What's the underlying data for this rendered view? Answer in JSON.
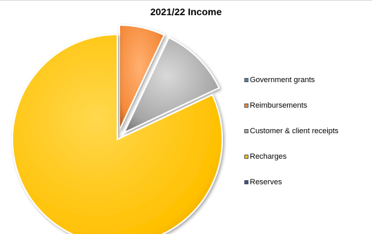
{
  "chart_data": {
    "type": "pie",
    "title": "2021/22 Income",
    "slices": [
      {
        "label": "Government grants",
        "value": 0,
        "color": "#4f81bd"
      },
      {
        "label": "Reimbursements",
        "value": 7,
        "color": "#f58a3a"
      },
      {
        "label": "Customer & client receipts",
        "value": 11,
        "color": "#a6a6a6"
      },
      {
        "label": "Recharges",
        "value": 82,
        "color": "#ffc000"
      },
      {
        "label": "Reserves",
        "value": 0,
        "color": "#2f5597"
      }
    ],
    "legend_position": "right",
    "exploded_slices": [
      "Reimbursements",
      "Customer & client receipts"
    ]
  }
}
